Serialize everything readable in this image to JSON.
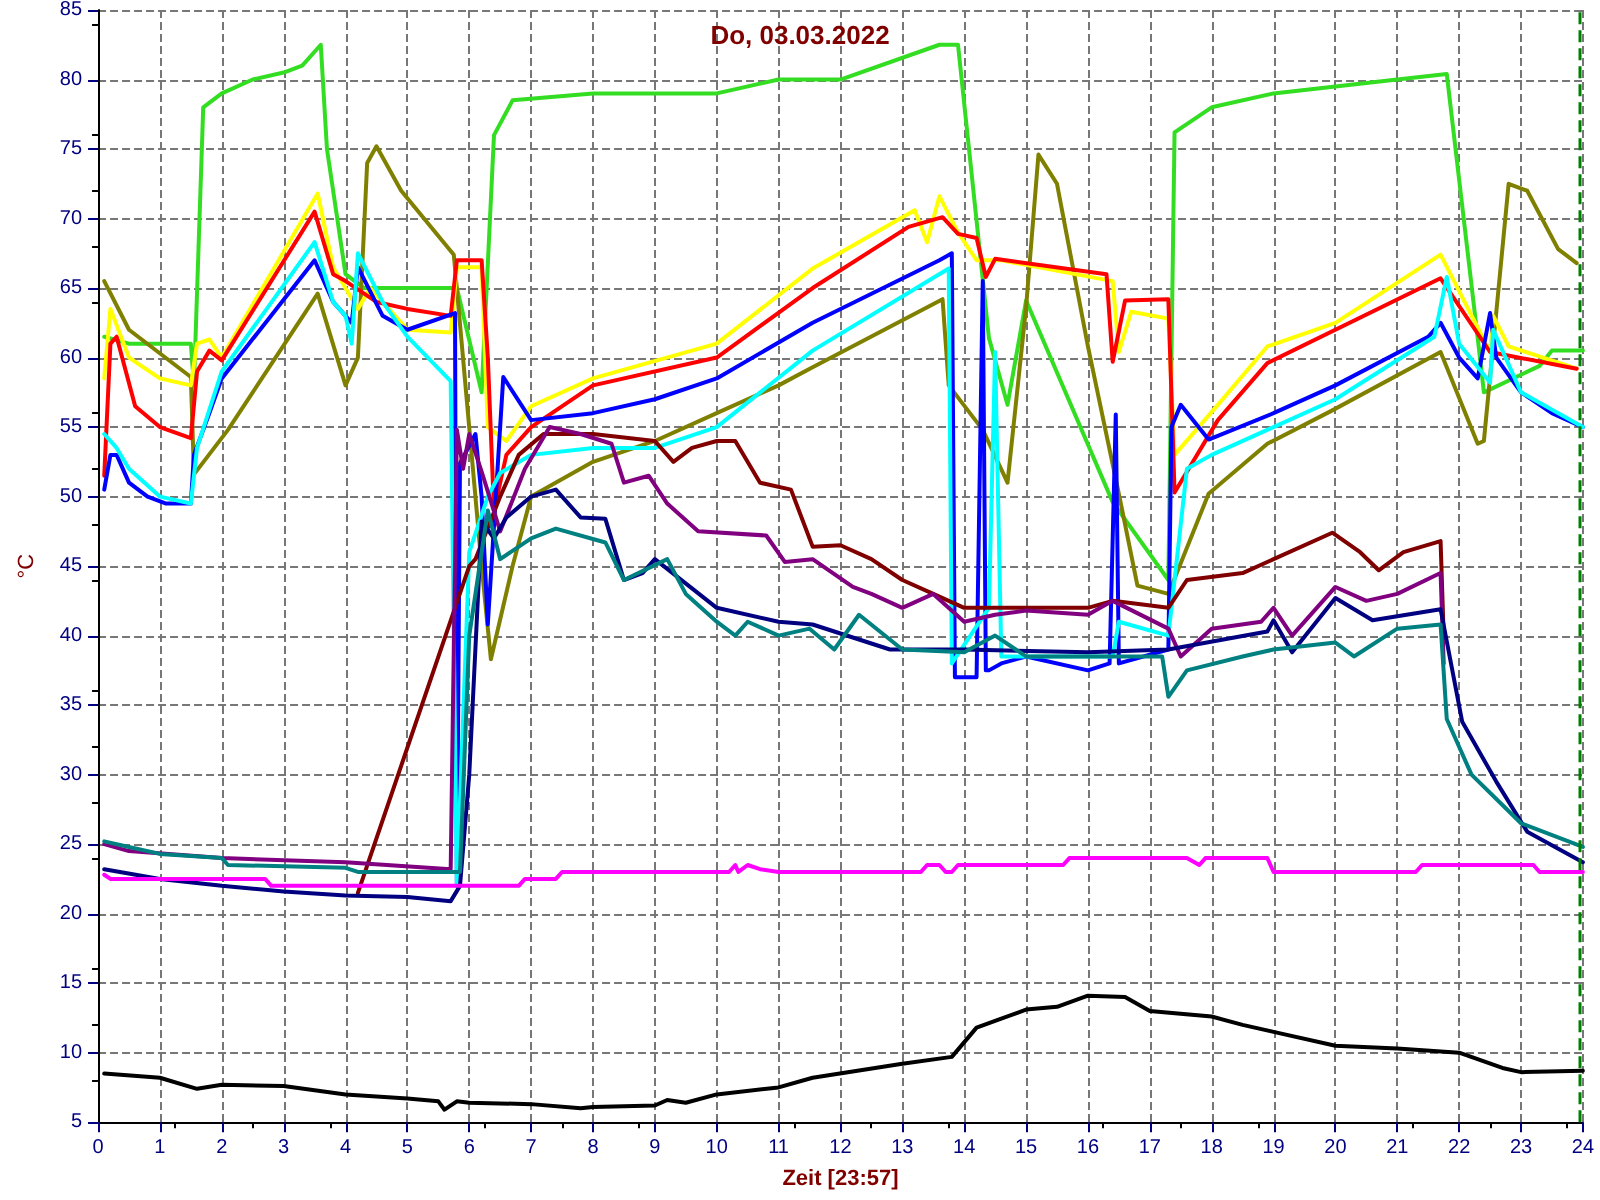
{
  "chart_data": {
    "type": "line",
    "title": "Do, 03.03.2022",
    "xlabel": "Zeit [23:57]",
    "ylabel": "°C",
    "xlim": [
      0,
      24
    ],
    "xticks": [
      0,
      1,
      2,
      3,
      4,
      5,
      6,
      7,
      8,
      9,
      10,
      11,
      12,
      13,
      14,
      15,
      16,
      17,
      18,
      19,
      20,
      21,
      22,
      23,
      24
    ],
    "ylim": [
      5,
      85
    ],
    "yticks": [
      5,
      10,
      15,
      20,
      25,
      30,
      35,
      40,
      45,
      50,
      55,
      60,
      65,
      70,
      75,
      80,
      85
    ],
    "grid": true,
    "marker": "none",
    "line_style": "solid",
    "ref_lines": [
      {
        "axis": "x",
        "value": 23.95,
        "color": "#008000",
        "line_style": "dashed"
      }
    ],
    "series": [
      {
        "color": "#33dd22",
        "x": [
          0.1,
          0.5,
          1.5,
          1.55,
          1.7,
          2,
          2.5,
          3,
          3.3,
          3.5,
          3.6,
          3.7,
          4,
          4.3,
          5,
          5.8,
          6.2,
          6.4,
          6.7,
          8,
          10,
          11,
          12,
          13.6,
          13.9,
          14.4,
          14.7,
          15,
          16.4,
          17.3,
          17.4,
          18,
          19,
          20,
          21,
          21.8,
          22.3,
          22.4,
          23.3,
          23.5,
          24
        ],
        "values": [
          61.5,
          61,
          61,
          58,
          78,
          79,
          80,
          80.5,
          81,
          82,
          82.5,
          75,
          66,
          65,
          65,
          65,
          57.5,
          76,
          78.5,
          79,
          79,
          80,
          80,
          82.5,
          82.5,
          61.4,
          56.6,
          64.1,
          49.6,
          44,
          76.2,
          78,
          79,
          79.5,
          80,
          80.4,
          61.4,
          57.5,
          59.4,
          60.5,
          60.5
        ]
      },
      {
        "color": "#808000",
        "x": [
          0.1,
          0.5,
          1.5,
          1.55,
          2.1,
          3.55,
          4,
          4.2,
          4.35,
          4.5,
          4.9,
          5.75,
          6.2,
          6.35,
          6.7,
          7,
          8,
          9,
          10,
          11,
          11.55,
          13.65,
          13.75,
          14.3,
          14.7,
          15,
          15.2,
          15.5,
          16,
          16.5,
          16.8,
          17.3,
          17.95,
          18.9,
          19.95,
          21.7,
          22.3,
          22.4,
          22.8,
          23.1,
          23.6,
          23.9
        ],
        "values": [
          65.5,
          62,
          58.6,
          51.6,
          54.8,
          64.6,
          58,
          60,
          74,
          75.2,
          72,
          67.4,
          45,
          38.3,
          45,
          50,
          52.5,
          54,
          56,
          58,
          59.3,
          64.2,
          58,
          54.8,
          51,
          63.6,
          74.6,
          72.5,
          60.8,
          50.2,
          43.6,
          43,
          50.2,
          53.8,
          56.2,
          60.4,
          53.8,
          54,
          72.5,
          72,
          67.8,
          66.8
        ]
      },
      {
        "color": "#ffff00",
        "x": [
          0.1,
          0.2,
          0.5,
          1,
          1.5,
          1.6,
          1.8,
          2,
          3.55,
          3.8,
          4.2,
          4.4,
          4.7,
          5,
          5.7,
          5.8,
          6.2,
          6.3,
          6.6,
          7,
          8,
          10,
          11.55,
          13.2,
          13.4,
          13.6,
          13.9,
          14.2,
          14.6,
          16.4,
          16.5,
          16.7,
          17.3,
          17.4,
          18.1,
          18.9,
          20,
          21.7,
          22.5,
          22.55,
          22.8,
          23.9
        ],
        "values": [
          58.5,
          63.5,
          60,
          58.5,
          58,
          61,
          61.3,
          60,
          71.8,
          66.5,
          63.5,
          65,
          63.5,
          62,
          61.8,
          66.5,
          66.5,
          55,
          54,
          56.5,
          58.5,
          61,
          66.4,
          70.6,
          68.3,
          71.6,
          69,
          67,
          67,
          65.5,
          60.4,
          63.3,
          62.8,
          53,
          56.6,
          60.8,
          62.5,
          67.4,
          60.4,
          63,
          60.8,
          59.2
        ]
      },
      {
        "color": "#ff0000",
        "x": [
          0.1,
          0.2,
          0.3,
          0.6,
          1,
          1.5,
          1.6,
          1.8,
          2,
          3.5,
          3.8,
          4,
          4.5,
          5,
          5.7,
          5.8,
          6.2,
          6.3,
          6.4,
          6.6,
          7,
          8,
          10,
          11.55,
          13.1,
          13.65,
          13.9,
          14.2,
          14.35,
          14.5,
          16.3,
          16.4,
          16.6,
          17.3,
          17.4,
          18.1,
          18.9,
          21.7,
          22.5,
          23.9
        ],
        "values": [
          51.5,
          61,
          61.5,
          56.5,
          55,
          54.2,
          59,
          60.5,
          59.8,
          70.5,
          66,
          65.5,
          64,
          63.5,
          63,
          67,
          67,
          60,
          49,
          53,
          55,
          58,
          60,
          65,
          69.4,
          70.1,
          68.9,
          68.6,
          65.8,
          67.1,
          66,
          59.7,
          64.1,
          64.2,
          50.3,
          55.5,
          59.6,
          65.7,
          60.4,
          59.2
        ]
      },
      {
        "color": "#0000ff",
        "x": [
          0.1,
          0.2,
          0.3,
          0.5,
          0.8,
          1.1,
          1.5,
          1.55,
          1.8,
          2,
          3.5,
          3.8,
          4.1,
          4.2,
          4.6,
          5,
          5.77,
          5.8,
          5.85,
          6.1,
          6.2,
          6.3,
          6.55,
          7,
          8,
          9,
          10,
          11.55,
          13.6,
          13.8,
          13.85,
          14.2,
          14.3,
          14.35,
          14.4,
          14.6,
          15,
          16,
          16.35,
          16.45,
          16.5,
          17.3,
          17.35,
          17.5,
          17.95,
          19,
          20,
          21.5,
          21.7,
          22,
          22.3,
          22.5,
          22.6,
          23,
          23.5,
          24
        ],
        "values": [
          50.5,
          53,
          53,
          51,
          50,
          49.5,
          49.5,
          53,
          56,
          58.5,
          67,
          64,
          62.5,
          66.5,
          63,
          62,
          63.2,
          22,
          52.4,
          54.5,
          50,
          40.8,
          58.6,
          55.5,
          56,
          57,
          58.5,
          62.5,
          67,
          67.5,
          37,
          37,
          65.5,
          37.5,
          37.5,
          38,
          38.5,
          37.5,
          38,
          55.9,
          38,
          39,
          55,
          56.6,
          54.1,
          56,
          58,
          61.5,
          62.5,
          60,
          58.5,
          63.2,
          60,
          57.5,
          56,
          55
        ]
      },
      {
        "color": "#00ffff",
        "x": [
          0.1,
          0.3,
          0.5,
          1,
          1.5,
          1.6,
          2,
          3.5,
          3.8,
          4,
          4.1,
          4.2,
          4.6,
          5,
          5.7,
          5.8,
          6,
          6.3,
          6.5,
          7,
          8,
          9,
          10,
          11.55,
          13.75,
          13.8,
          14.4,
          14.5,
          14.6,
          15,
          16.4,
          16.5,
          17.3,
          17.6,
          18,
          19,
          20,
          21.6,
          21.8,
          22,
          22.5,
          22.55,
          23,
          24
        ],
        "values": [
          54.5,
          53.5,
          52,
          50,
          49.5,
          53.5,
          59,
          68.3,
          64,
          63,
          61,
          67.5,
          64,
          61.5,
          58.3,
          22,
          46,
          50,
          51.7,
          53,
          53.5,
          53.5,
          55,
          60.5,
          66.4,
          38,
          42,
          60.4,
          38.5,
          38.5,
          38.5,
          41,
          40,
          52,
          53,
          55,
          57,
          61.5,
          65.8,
          61,
          58.2,
          62,
          57.5,
          55
        ]
      },
      {
        "color": "#800000",
        "x": [
          4.2,
          6,
          6.1,
          6.5,
          6.8,
          7.2,
          8,
          9,
          9.3,
          9.6,
          10,
          10.3,
          10.7,
          11.2,
          11.55,
          12,
          12.5,
          13,
          13.5,
          14,
          14.5,
          16,
          16.4,
          17.3,
          17.6,
          18.5,
          19.95,
          20.4,
          20.7,
          21.1,
          21.7,
          21.75
        ],
        "values": [
          21.5,
          45,
          45.5,
          50,
          53,
          54.5,
          54.5,
          54,
          52.5,
          53.5,
          54,
          54,
          51,
          50.5,
          46.4,
          46.5,
          45.5,
          44,
          43,
          42,
          42,
          42,
          42.5,
          42,
          44,
          44.5,
          47.4,
          46,
          44.7,
          46,
          46.8,
          40
        ]
      },
      {
        "color": "#800080",
        "x": [
          0.1,
          0.5,
          2,
          4,
          5.7,
          5.8,
          5.9,
          6,
          6.2,
          6.5,
          6.9,
          7.3,
          7.8,
          8.3,
          8.5,
          8.9,
          9.2,
          9.7,
          10.8,
          11.1,
          11.55,
          12.2,
          12.5,
          13,
          13.5,
          14,
          14.5,
          15,
          16,
          16.4,
          17.3,
          17.5,
          18,
          18.8,
          19,
          19.3,
          20,
          20.5,
          21,
          21.7,
          21.75
        ],
        "values": [
          25,
          24.5,
          24,
          23.7,
          23.2,
          54.8,
          52,
          54.5,
          51.8,
          47.5,
          52,
          55,
          54.5,
          53.8,
          51,
          51.5,
          49.5,
          47.5,
          47.2,
          45.3,
          45.5,
          43.5,
          43,
          42,
          43,
          41,
          41.5,
          41.8,
          41.5,
          42.5,
          40.5,
          38.5,
          40.5,
          41,
          42,
          40,
          43.5,
          42.5,
          43,
          44.5,
          38
        ]
      },
      {
        "color": "#000080",
        "x": [
          0.1,
          1,
          2,
          3,
          4,
          5,
          5.7,
          5.85,
          6,
          6.2,
          6.4,
          6.6,
          7,
          7.4,
          7.8,
          8.2,
          8.5,
          8.8,
          9,
          10,
          11,
          11.55,
          12.8,
          14,
          16,
          17.3,
          18.9,
          19,
          19.3,
          20,
          20.6,
          21.7,
          22.05,
          22.6,
          23.1,
          24
        ],
        "values": [
          23.2,
          22.5,
          22,
          21.6,
          21.3,
          21.2,
          20.9,
          22,
          30,
          48.2,
          47,
          48.5,
          50,
          50.5,
          48.5,
          48.4,
          44,
          44.5,
          45.5,
          42,
          41,
          40.8,
          39,
          39,
          38.8,
          39,
          40.3,
          41.1,
          38.8,
          42.7,
          41.1,
          41.9,
          33.8,
          29.5,
          25.9,
          23.7
        ]
      },
      {
        "color": "#008080",
        "x": [
          0.1,
          0.5,
          1,
          2,
          2.1,
          4,
          4.2,
          5.7,
          5.85,
          6,
          6.3,
          6.5,
          7,
          7.4,
          8.2,
          8.5,
          9.2,
          9.5,
          10,
          10.3,
          10.5,
          11,
          11.5,
          11.9,
          12.3,
          13,
          14,
          14.5,
          15,
          16,
          17.2,
          17.3,
          17.6,
          18.5,
          19,
          20,
          20.3,
          21,
          21.7,
          21.8,
          22.2,
          23,
          24
        ],
        "values": [
          25.2,
          24.8,
          24.3,
          24,
          23.5,
          23.3,
          23,
          23,
          23,
          40,
          49,
          45.5,
          47,
          47.7,
          46.7,
          44,
          45.5,
          43,
          41,
          40,
          41,
          40,
          40.5,
          39,
          41.5,
          39,
          38.8,
          40,
          38.5,
          38.5,
          38.5,
          35.6,
          37.5,
          38.5,
          39,
          39.5,
          38.5,
          40.5,
          40.8,
          34,
          30,
          26.5,
          24.8
        ]
      },
      {
        "color": "#ff00ff",
        "x": [
          0.1,
          0.2,
          2.7,
          2.8,
          6.8,
          6.9,
          7.4,
          7.5,
          10.2,
          10.3,
          10.35,
          10.5,
          10.7,
          11,
          13.3,
          13.4,
          13.6,
          13.7,
          13.8,
          13.9,
          15.6,
          15.7,
          17.6,
          17.8,
          17.9,
          18.9,
          19,
          21.3,
          21.4,
          23.2,
          23.3,
          24
        ],
        "values": [
          22.8,
          22.5,
          22.5,
          22,
          22,
          22.5,
          22.5,
          23,
          23,
          23.5,
          23,
          23.5,
          23.2,
          23,
          23,
          23.5,
          23.5,
          23,
          23,
          23.5,
          23.5,
          24,
          24,
          23.5,
          24,
          24,
          23,
          23,
          23.5,
          23.5,
          23,
          23
        ]
      },
      {
        "color": "#000000",
        "x": [
          0.1,
          1,
          1.6,
          2,
          3,
          4,
          5,
          5.5,
          5.6,
          5.8,
          6,
          7,
          7.8,
          8,
          9,
          9.2,
          9.5,
          10,
          11,
          11.55,
          13,
          13.8,
          14.2,
          15,
          15.5,
          16,
          16.6,
          17,
          18,
          18.5,
          19,
          20,
          21,
          22,
          22.7,
          23,
          24
        ],
        "values": [
          8.5,
          8.2,
          7.4,
          7.7,
          7.6,
          7,
          6.7,
          6.5,
          5.9,
          6.5,
          6.4,
          6.3,
          6,
          6.1,
          6.2,
          6.6,
          6.4,
          7,
          7.5,
          8.2,
          9.2,
          9.7,
          11.8,
          13.1,
          13.3,
          14.1,
          14,
          13,
          12.6,
          12,
          11.5,
          10.5,
          10.3,
          10,
          8.9,
          8.6,
          8.7
        ]
      }
    ]
  }
}
